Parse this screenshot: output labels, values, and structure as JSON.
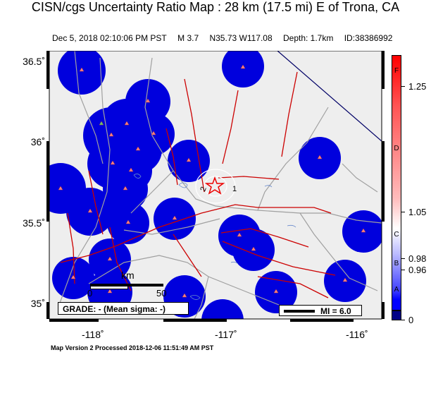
{
  "title": "CISN/cgs Uncertainty Ratio Map : 28 km (17.5 mi) E of Trona, CA",
  "event": {
    "datetime": "Dec  5, 2018 02:10:06 PM PST",
    "magnitude": "M 3.7",
    "location": "N35.73 W117.08",
    "depth": "Depth: 1.7km",
    "id": "ID:38386992"
  },
  "axes": {
    "y_labels": [
      "36.5˚",
      "36˚",
      "35.5˚",
      "35˚"
    ],
    "x_labels": [
      "-118˚",
      "-117˚",
      "-116˚"
    ]
  },
  "scale_bar": {
    "unit": "km",
    "start": "0",
    "end": "50"
  },
  "grade_label": "GRADE: - (Mean sigma: -)",
  "mi_legend": "MI = 6.0",
  "contour_labels": [
    "2",
    "1"
  ],
  "colorbar": {
    "tick_labels": [
      "1.25",
      "1.05",
      "0.98",
      "0.96",
      "0"
    ],
    "grade_letters": [
      "F",
      "D",
      "C",
      "B",
      "A"
    ],
    "colors": {
      "top": "#ff0000",
      "mid": "#ffffff",
      "bottom": "#0000ff",
      "base": "#000088"
    }
  },
  "colors": {
    "background": "#eeeeee",
    "station_disk": "#0000e0",
    "station_marker": "#ff8080",
    "fault": "#cc0000",
    "road": "#a0a0a0",
    "epicenter": "#ff0000"
  },
  "footer": "Map Version 2 Processed 2018-12-06 11:51:49 AM PST"
}
